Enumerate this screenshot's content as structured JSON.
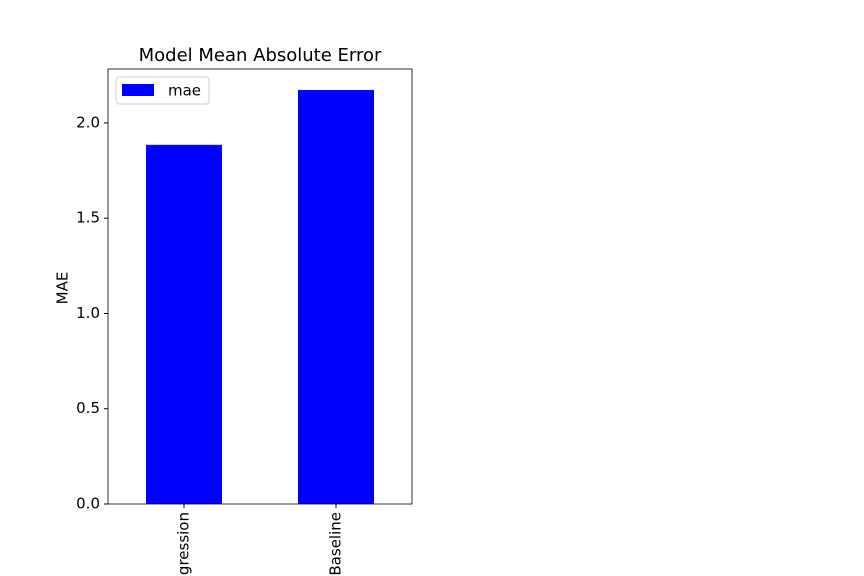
{
  "chart_data": {
    "type": "bar",
    "title": "Model Mean Absolute Error",
    "y_label": "MAE",
    "categories": [
      "gression",
      "Baseline"
    ],
    "series": [
      {
        "name": "mae",
        "color": "#0000ff",
        "values": [
          1.885,
          2.173
        ]
      }
    ],
    "ylim": [
      0,
      2.283
    ],
    "yticks": [
      {
        "value": 0,
        "label": "0.0"
      },
      {
        "value": 0.5,
        "label": "0.5"
      },
      {
        "value": 1,
        "label": "1.0"
      },
      {
        "value": 1.5,
        "label": "1.5"
      },
      {
        "value": 2,
        "label": "2.0"
      }
    ],
    "grid": false,
    "legend": "upper left"
  }
}
